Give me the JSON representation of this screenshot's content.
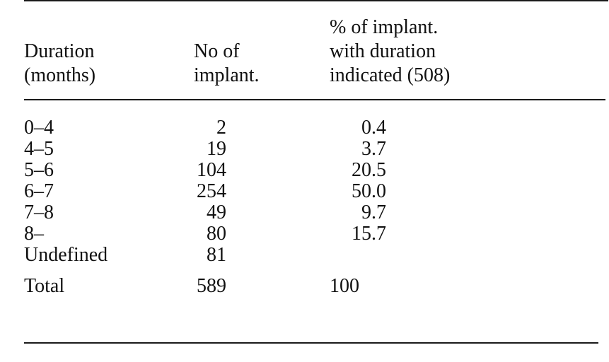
{
  "table": {
    "headers": {
      "duration": [
        "Duration",
        "(months)"
      ],
      "number": [
        "No of",
        "implant."
      ],
      "percent": [
        "% of implant.",
        "with duration",
        "indicated (508)"
      ]
    },
    "rows": [
      {
        "duration": "0–4",
        "number": "2",
        "percent": "0.4"
      },
      {
        "duration": "4–5",
        "number": "19",
        "percent": "3.7"
      },
      {
        "duration": "5–6",
        "number": "104",
        "percent": "20.5"
      },
      {
        "duration": "6–7",
        "number": "254",
        "percent": "50.0"
      },
      {
        "duration": "7–8",
        "number": "49",
        "percent": "9.7"
      },
      {
        "duration": "8–",
        "number": "80",
        "percent": "15.7"
      },
      {
        "duration": "Undefined",
        "number": "81",
        "percent": ""
      }
    ],
    "total": {
      "duration": "Total",
      "number": "589",
      "percent": "100"
    }
  }
}
